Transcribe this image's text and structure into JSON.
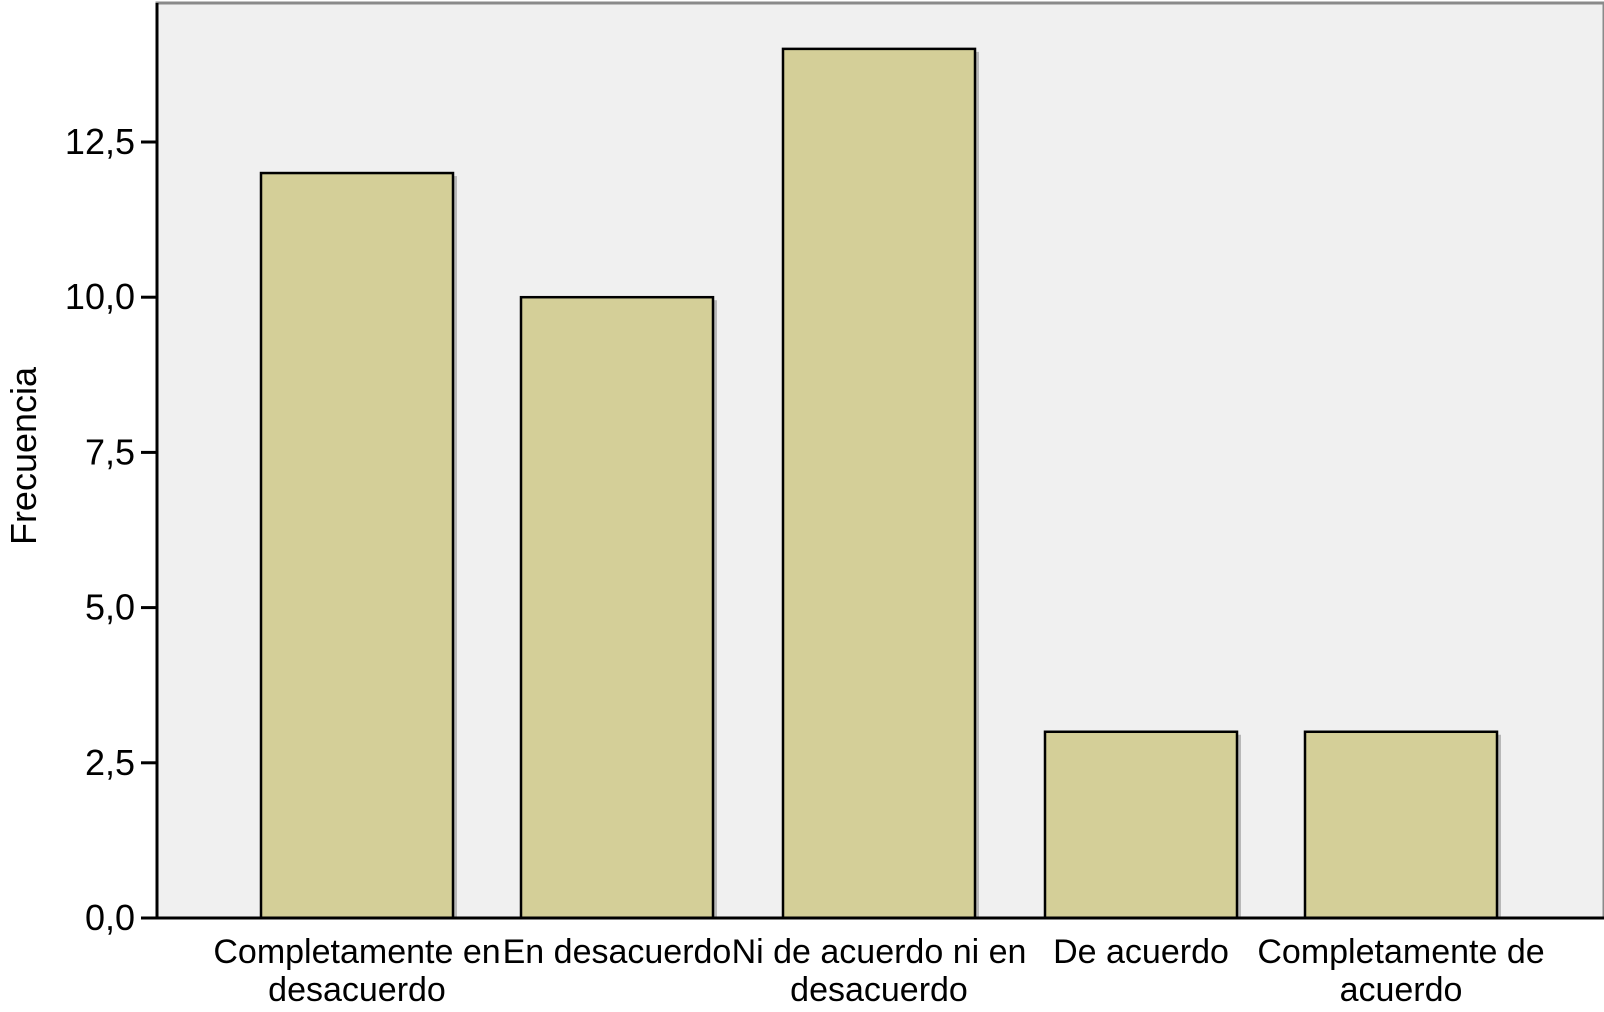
{
  "chart_data": {
    "type": "bar",
    "title": "",
    "xlabel": "",
    "ylabel": "Frecuencia",
    "categories": [
      [
        "Completamente en",
        "desacuerdo"
      ],
      [
        "En desacuerdo"
      ],
      [
        "Ni de acuerdo ni en",
        "desacuerdo"
      ],
      [
        "De acuerdo"
      ],
      [
        "Completamente de",
        "acuerdo"
      ]
    ],
    "values": [
      12,
      10,
      14,
      3,
      3
    ],
    "ylim": [
      0,
      14.75
    ],
    "yticks": [
      0,
      2.5,
      5,
      7.5,
      10,
      12.5
    ],
    "ytick_labels": [
      "0,0",
      "2,5",
      "5,0",
      "7,5",
      "10,0",
      "12,5"
    ],
    "grid": false,
    "legend": "none",
    "colors": {
      "plot_background": "#f0f0f0",
      "bar_fill": "#d4cf98",
      "bar_stroke": "#000000",
      "axis": "#000000",
      "frame": "#8a8a8a"
    }
  }
}
